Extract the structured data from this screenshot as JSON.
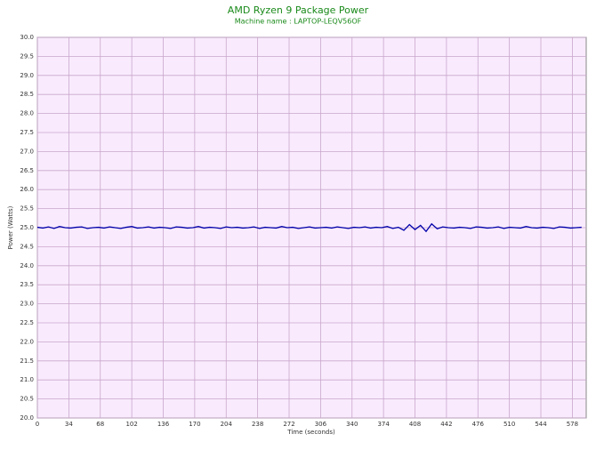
{
  "chart_data": {
    "type": "line",
    "title": "AMD Ryzen 9 Package Power",
    "subtitle": "Machine name : LAPTOP-LEQV56OF",
    "x_label": "Time (seconds)",
    "y_label": "Power (Watts)",
    "xlim": [
      0,
      593
    ],
    "xticks": [
      0,
      34,
      68,
      102,
      136,
      170,
      204,
      238,
      272,
      306,
      340,
      374,
      408,
      442,
      476,
      510,
      544,
      578
    ],
    "ylim": [
      20,
      30
    ],
    "yticks": [
      {
        "value": 20,
        "label": "20.0"
      },
      20.5,
      {
        "value": 21,
        "label": "21.0"
      },
      21.5,
      {
        "value": 22,
        "label": "22.0"
      },
      22.5,
      {
        "value": 23,
        "label": "23.0"
      },
      23.5,
      {
        "value": 24,
        "label": "24.0"
      },
      24.5,
      {
        "value": 25,
        "label": "25.0"
      },
      25.5,
      {
        "value": 26,
        "label": "26.0"
      },
      26.5,
      {
        "value": 27,
        "label": "27.0"
      },
      27.5,
      {
        "value": 28,
        "label": "28.0"
      },
      28.5,
      {
        "value": 29,
        "label": "29.0"
      },
      29.5,
      {
        "value": 30,
        "label": "30.0"
      }
    ],
    "grid": true,
    "x": [
      0,
      6,
      12,
      18,
      24,
      30,
      36,
      42,
      48,
      54,
      60,
      66,
      72,
      78,
      84,
      90,
      96,
      102,
      108,
      114,
      120,
      126,
      132,
      138,
      144,
      150,
      156,
      162,
      168,
      174,
      180,
      186,
      192,
      198,
      204,
      210,
      216,
      222,
      228,
      234,
      240,
      246,
      252,
      258,
      264,
      270,
      276,
      282,
      288,
      294,
      300,
      306,
      312,
      318,
      324,
      330,
      336,
      342,
      348,
      354,
      360,
      366,
      372,
      378,
      384,
      390,
      396,
      402,
      408,
      414,
      420,
      426,
      432,
      438,
      444,
      450,
      456,
      462,
      468,
      474,
      480,
      486,
      492,
      498,
      504,
      510,
      516,
      522,
      528,
      534,
      540,
      546,
      552,
      558,
      564,
      570,
      576,
      582,
      588
    ],
    "series": [
      {
        "name": "Package Power",
        "color": "#0000aa",
        "values": [
          25.01,
          24.99,
          25.02,
          24.98,
          25.03,
          25.0,
          24.99,
          25.01,
          25.02,
          24.98,
          25.0,
          25.01,
          24.99,
          25.02,
          25.0,
          24.98,
          25.01,
          25.03,
          24.99,
          25.0,
          25.02,
          24.99,
          25.01,
          25.0,
          24.98,
          25.02,
          25.01,
          24.99,
          25.0,
          25.03,
          24.99,
          25.01,
          25.0,
          24.98,
          25.02,
          25.0,
          25.01,
          24.99,
          25.0,
          25.02,
          24.98,
          25.01,
          25.0,
          24.99,
          25.03,
          25.0,
          25.01,
          24.98,
          25.0,
          25.02,
          24.99,
          25.0,
          25.01,
          24.99,
          25.02,
          25.0,
          24.98,
          25.01,
          25.0,
          25.02,
          24.99,
          25.01,
          25.0,
          25.03,
          24.98,
          25.01,
          24.93,
          25.08,
          24.95,
          25.06,
          24.9,
          25.1,
          24.97,
          25.02,
          25.0,
          24.99,
          25.01,
          25.0,
          24.98,
          25.02,
          25.01,
          24.99,
          25.0,
          25.02,
          24.98,
          25.01,
          25.0,
          24.99,
          25.03,
          25.0,
          24.99,
          25.01,
          25.0,
          24.98,
          25.02,
          25.01,
          24.99,
          25.0,
          25.01
        ]
      }
    ]
  }
}
